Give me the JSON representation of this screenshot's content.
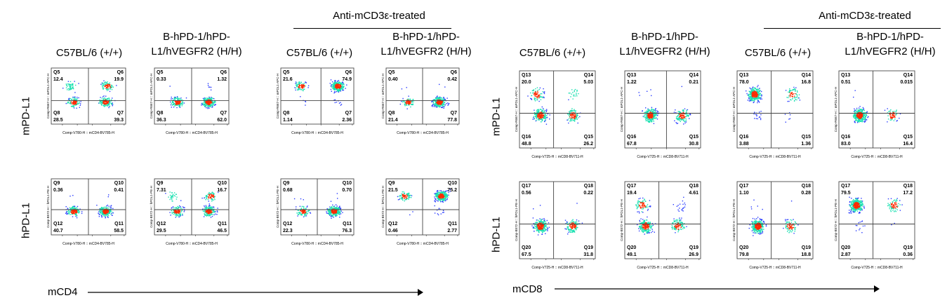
{
  "treated_label": "Anti-mCD3ε-treated",
  "headers": {
    "wt": "C57BL/6 (+/+)",
    "hh_line1": "B-hPD-1/hPD-",
    "hh_line2": "L1/hVEGFR2 (H/H)"
  },
  "row_labels": {
    "mpdl1": "mPD-L1",
    "hpdl1": "hPD-L1"
  },
  "axis_labels": {
    "left": "mCD4",
    "right": "mCD8"
  },
  "colors": {
    "density_low": "#2a3cff",
    "density_mid": "#19e0b0",
    "density_high": "#ff2a00"
  },
  "chart_data": [
    {
      "type": "scatter",
      "population": "mCD4",
      "row": "mPD-L1",
      "group": "C57BL/6 (+/+)",
      "treated": false,
      "xlabel": "Comp-V780-H :: mCD4-BV785-H",
      "ylabel": "Comp-R667-H :: mPDL1-APC-H",
      "quadrants": {
        "Q5": "12.4",
        "Q6": "19.9",
        "Q8": "28.5",
        "Q7": "39.3"
      }
    },
    {
      "type": "scatter",
      "population": "mCD4",
      "row": "mPD-L1",
      "group": "B-hPD-1/hPD-L1/hVEGFR2 (H/H)",
      "treated": false,
      "xlabel": "Comp-V780-H :: mCD4-BV785-H",
      "ylabel": "Comp-R667-H :: mPDL1-APC-H",
      "quadrants": {
        "Q5": "0.33",
        "Q6": "1.32",
        "Q8": "36.3",
        "Q7": "62.0"
      }
    },
    {
      "type": "scatter",
      "population": "mCD4",
      "row": "mPD-L1",
      "group": "C57BL/6 (+/+)",
      "treated": true,
      "xlabel": "Comp-V780-H :: mCD4-BV785-H",
      "ylabel": "Comp-R667-H :: mPDL1-APC-H",
      "quadrants": {
        "Q5": "21.6",
        "Q6": "74.9",
        "Q8": "1.14",
        "Q7": "2.36"
      }
    },
    {
      "type": "scatter",
      "population": "mCD4",
      "row": "mPD-L1",
      "group": "B-hPD-1/hPD-L1/hVEGFR2 (H/H)",
      "treated": true,
      "xlabel": "Comp-V780-H :: mCD4-BV785-H",
      "ylabel": "Comp-R667-H :: mPDL1-APC-H",
      "quadrants": {
        "Q5": "0.40",
        "Q6": "0.42",
        "Q8": "21.4",
        "Q7": "77.8"
      }
    },
    {
      "type": "scatter",
      "population": "mCD4",
      "row": "hPD-L1",
      "group": "C57BL/6 (+/+)",
      "treated": false,
      "xlabel": "Comp-V780-H :: mCD4-BV785-H",
      "ylabel": "Comp-B572-H :: hPDL1-PE-H",
      "quadrants": {
        "Q9": "0.36",
        "Q10": "0.41",
        "Q12": "40.7",
        "Q11": "58.5"
      }
    },
    {
      "type": "scatter",
      "population": "mCD4",
      "row": "hPD-L1",
      "group": "B-hPD-1/hPD-L1/hVEGFR2 (H/H)",
      "treated": false,
      "xlabel": "Comp-V780-H :: mCD4-BV785-H",
      "ylabel": "Comp-B572-H :: hPDL1-PE-H",
      "quadrants": {
        "Q9": "7.31",
        "Q10": "16.7",
        "Q12": "29.5",
        "Q11": "46.5"
      }
    },
    {
      "type": "scatter",
      "population": "mCD4",
      "row": "hPD-L1",
      "group": "C57BL/6 (+/+)",
      "treated": true,
      "xlabel": "Comp-V780-H :: mCD4-BV785-H",
      "ylabel": "Comp-B572-H :: hPDL1-PE-H",
      "quadrants": {
        "Q9": "0.68",
        "Q10": "0.70",
        "Q12": "22.3",
        "Q11": "76.3"
      }
    },
    {
      "type": "scatter",
      "population": "mCD4",
      "row": "hPD-L1",
      "group": "B-hPD-1/hPD-L1/hVEGFR2 (H/H)",
      "treated": true,
      "xlabel": "Comp-V780-H :: mCD4-BV785-H",
      "ylabel": "Comp-B572-H :: hPDL1-PE-H",
      "quadrants": {
        "Q9": "21.5",
        "Q10": "75.2",
        "Q12": "0.46",
        "Q11": "2.77"
      }
    },
    {
      "type": "scatter",
      "population": "mCD8",
      "row": "mPD-L1",
      "group": "C57BL/6 (+/+)",
      "treated": false,
      "xlabel": "Comp-V725-H :: mCD8-BV711-H",
      "ylabel": "Comp-R667-H :: mPDL1-APC-H",
      "quadrants": {
        "Q13": "20.0",
        "Q14": "5.03",
        "Q16": "48.8",
        "Q15": "26.2"
      }
    },
    {
      "type": "scatter",
      "population": "mCD8",
      "row": "mPD-L1",
      "group": "B-hPD-1/hPD-L1/hVEGFR2 (H/H)",
      "treated": false,
      "xlabel": "Comp-V725-H :: mCD8-BV711-H",
      "ylabel": "Comp-R667-H :: mPDL1-APC-H",
      "quadrants": {
        "Q13": "1.22",
        "Q14": "0.21",
        "Q16": "67.8",
        "Q15": "30.8"
      }
    },
    {
      "type": "scatter",
      "population": "mCD8",
      "row": "mPD-L1",
      "group": "C57BL/6 (+/+)",
      "treated": true,
      "xlabel": "Comp-V725-H :: mCD8-BV711-H",
      "ylabel": "Comp-R667-H :: mPDL1-APC-H",
      "quadrants": {
        "Q13": "78.0",
        "Q14": "16.8",
        "Q16": "3.88",
        "Q15": "1.36"
      }
    },
    {
      "type": "scatter",
      "population": "mCD8",
      "row": "mPD-L1",
      "group": "B-hPD-1/hPD-L1/hVEGFR2 (H/H)",
      "treated": true,
      "xlabel": "Comp-V725-H :: mCD8-BV711-H",
      "ylabel": "Comp-R667-H :: mPDL1-APC-H",
      "quadrants": {
        "Q13": "0.51",
        "Q14": "0.015",
        "Q16": "83.0",
        "Q15": "16.4"
      }
    },
    {
      "type": "scatter",
      "population": "mCD8",
      "row": "hPD-L1",
      "group": "C57BL/6 (+/+)",
      "treated": false,
      "xlabel": "Comp-V725-H :: mCD8-BV711-H",
      "ylabel": "Comp-B572-H :: hPDL1-PE-H",
      "quadrants": {
        "Q17": "0.56",
        "Q18": "0.22",
        "Q20": "67.5",
        "Q19": "31.8"
      }
    },
    {
      "type": "scatter",
      "population": "mCD8",
      "row": "hPD-L1",
      "group": "B-hPD-1/hPD-L1/hVEGFR2 (H/H)",
      "treated": false,
      "xlabel": "Comp-V725-H :: mCD8-BV711-H",
      "ylabel": "Comp-B572-H :: hPDL1-PE-H",
      "quadrants": {
        "Q17": "19.4",
        "Q18": "4.61",
        "Q20": "49.1",
        "Q19": "26.9"
      }
    },
    {
      "type": "scatter",
      "population": "mCD8",
      "row": "hPD-L1",
      "group": "C57BL/6 (+/+)",
      "treated": true,
      "xlabel": "Comp-V725-H :: mCD8-BV711-H",
      "ylabel": "Comp-B572-H :: hPDL1-PE-H",
      "quadrants": {
        "Q17": "1.10",
        "Q18": "0.28",
        "Q20": "79.8",
        "Q19": "18.8"
      }
    },
    {
      "type": "scatter",
      "population": "mCD8",
      "row": "hPD-L1",
      "group": "B-hPD-1/hPD-L1/hVEGFR2 (H/H)",
      "treated": true,
      "xlabel": "Comp-V725-H :: mCD8-BV711-H",
      "ylabel": "Comp-B572-H :: hPDL1-PE-H",
      "quadrants": {
        "Q17": "79.5",
        "Q18": "17.2",
        "Q20": "2.87",
        "Q19": "0.36"
      }
    }
  ]
}
